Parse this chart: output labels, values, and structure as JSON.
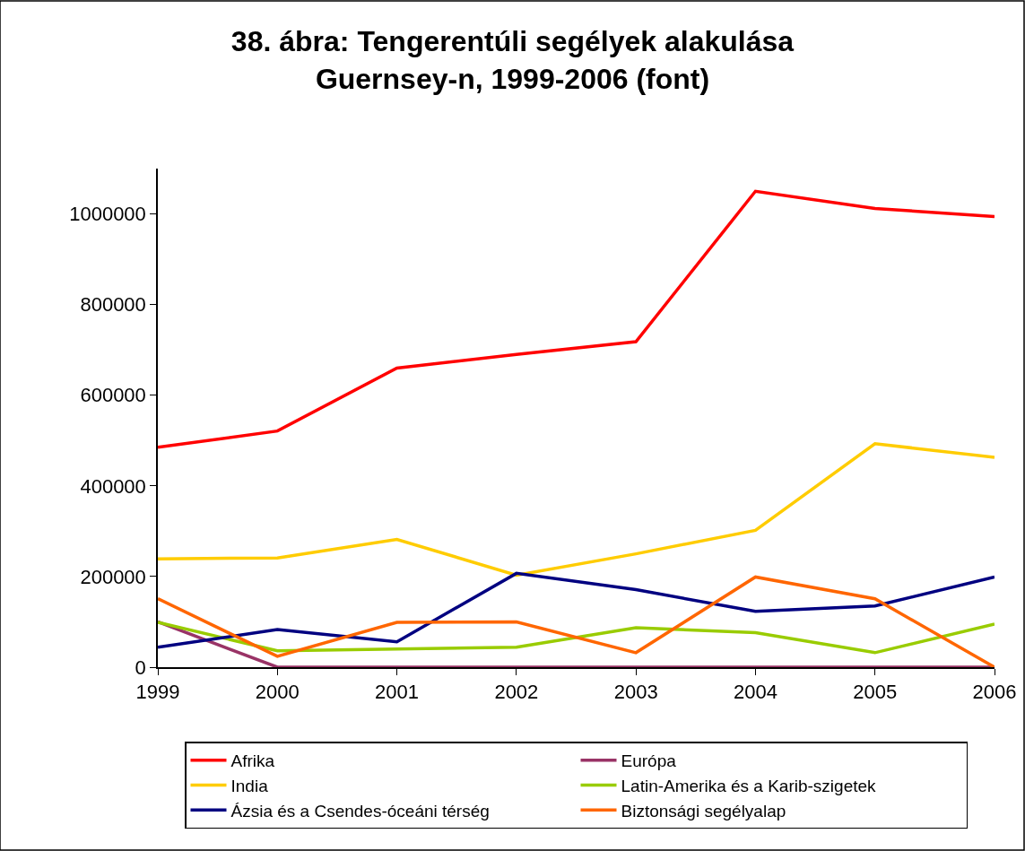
{
  "chart_data": {
    "type": "line",
    "title": "38. ábra: Tengerentúli segélyek alakulása\nGuernsey-n, 1999-2006 (font)",
    "x": [
      1999,
      2000,
      2001,
      2002,
      2003,
      2004,
      2005,
      2006
    ],
    "xlim": [
      1999,
      2006
    ],
    "xticks": [
      1999,
      2000,
      2001,
      2002,
      2003,
      2004,
      2005,
      2006
    ],
    "ylim": [
      0,
      1100000
    ],
    "yticks": [
      0,
      200000,
      400000,
      600000,
      800000,
      1000000
    ],
    "grid": false,
    "legend": "bottom",
    "marker": "none",
    "line_style": "solid",
    "series": [
      {
        "name": "Afrika",
        "color": "#ff0000",
        "values": [
          485000,
          521000,
          660000,
          690000,
          718000,
          1050000,
          1012000,
          994000
        ]
      },
      {
        "name": "Európa",
        "color": "#993366",
        "values": [
          100000,
          0,
          0,
          0,
          0,
          0,
          0,
          0
        ]
      },
      {
        "name": "India",
        "color": "#ffcc00",
        "values": [
          239000,
          241000,
          282000,
          203000,
          250000,
          302000,
          493000,
          463000
        ]
      },
      {
        "name": "Latin-Amerika és a Karib-szigetek",
        "color": "#99cc00",
        "values": [
          99000,
          36000,
          40000,
          44000,
          87000,
          76000,
          32000,
          95000
        ]
      },
      {
        "name": "Ázsia és a Csendes-óceáni térség",
        "color": "#000080",
        "values": [
          44000,
          83000,
          56000,
          207000,
          171000,
          123000,
          135000,
          199000
        ]
      },
      {
        "name": "Biztonsági segélyalap",
        "color": "#ff6600",
        "values": [
          151000,
          24000,
          99000,
          100000,
          32000,
          199000,
          151000,
          0
        ]
      }
    ]
  }
}
